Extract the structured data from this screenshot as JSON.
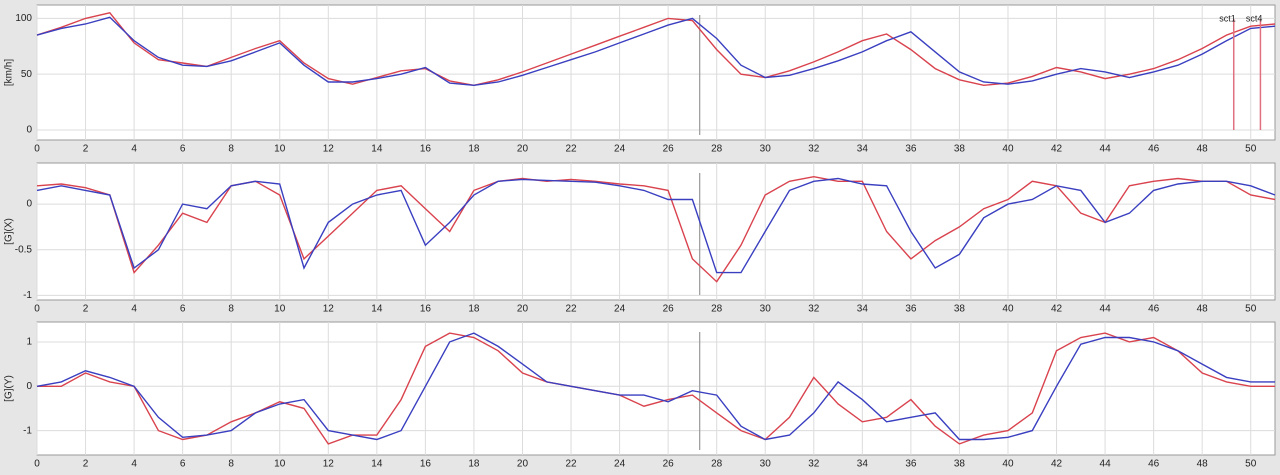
{
  "chart_data": [
    {
      "type": "line",
      "ylabel": "[km/h]",
      "x": [
        0,
        1,
        2,
        3,
        4,
        5,
        6,
        7,
        8,
        9,
        10,
        11,
        12,
        13,
        14,
        15,
        16,
        17,
        18,
        19,
        20,
        21,
        22,
        23,
        24,
        25,
        26,
        27,
        28,
        29,
        30,
        31,
        32,
        33,
        34,
        35,
        36,
        37,
        38,
        39,
        40,
        41,
        42,
        43,
        44,
        45,
        46,
        47,
        48,
        49,
        50,
        51
      ],
      "series": [
        {
          "color": "#d9434e",
          "values": [
            85,
            92,
            100,
            105,
            78,
            63,
            60,
            57,
            65,
            73,
            80,
            60,
            46,
            41,
            47,
            53,
            55,
            44,
            40,
            45,
            52,
            60,
            68,
            76,
            84,
            92,
            100,
            98,
            72,
            50,
            47,
            53,
            61,
            70,
            80,
            86,
            72,
            55,
            45,
            40,
            42,
            48,
            56,
            52,
            46,
            50,
            55,
            63,
            73,
            85,
            93,
            95
          ]
        },
        {
          "color": "#3a3fc0",
          "values": [
            85,
            91,
            95,
            101,
            80,
            65,
            58,
            57,
            62,
            70,
            78,
            58,
            43,
            43,
            46,
            50,
            56,
            42,
            40,
            43,
            49,
            56,
            63,
            70,
            78,
            86,
            94,
            100,
            82,
            58,
            47,
            49,
            55,
            62,
            70,
            80,
            88,
            70,
            52,
            43,
            41,
            44,
            50,
            55,
            52,
            47,
            52,
            58,
            68,
            80,
            91,
            93
          ]
        }
      ],
      "xlim": [
        0,
        51
      ],
      "xticks": [
        0,
        2,
        4,
        6,
        8,
        10,
        12,
        14,
        16,
        18,
        20,
        22,
        24,
        26,
        28,
        30,
        32,
        34,
        36,
        38,
        40,
        42,
        44,
        46,
        48,
        50
      ],
      "ylim": [
        -9,
        112
      ],
      "yticks": [
        0,
        50,
        100
      ],
      "grid": true,
      "cursor_x": 27.3,
      "markers": [
        {
          "label": "sct1",
          "x": 49.3
        },
        {
          "label": "sct4",
          "x": 50.4
        }
      ]
    },
    {
      "type": "line",
      "ylabel": "[G](X)",
      "x": [
        0,
        1,
        2,
        3,
        4,
        5,
        6,
        7,
        8,
        9,
        10,
        11,
        12,
        13,
        14,
        15,
        16,
        17,
        18,
        19,
        20,
        21,
        22,
        23,
        24,
        25,
        26,
        27,
        28,
        29,
        30,
        31,
        32,
        33,
        34,
        35,
        36,
        37,
        38,
        39,
        40,
        41,
        42,
        43,
        44,
        45,
        46,
        47,
        48,
        49,
        50,
        51
      ],
      "series": [
        {
          "color": "#d9434e",
          "values": [
            0.2,
            0.22,
            0.18,
            0.1,
            -0.75,
            -0.45,
            -0.1,
            -0.2,
            0.2,
            0.25,
            0.1,
            -0.6,
            -0.35,
            -0.1,
            0.15,
            0.2,
            -0.05,
            -0.3,
            0.15,
            0.25,
            0.28,
            0.25,
            0.27,
            0.25,
            0.22,
            0.2,
            0.15,
            -0.6,
            -0.85,
            -0.45,
            0.1,
            0.25,
            0.3,
            0.25,
            0.25,
            -0.3,
            -0.6,
            -0.4,
            -0.25,
            -0.05,
            0.05,
            0.25,
            0.2,
            -0.1,
            -0.2,
            0.2,
            0.25,
            0.28,
            0.25,
            0.25,
            0.1,
            0.05
          ]
        },
        {
          "color": "#3a3fc0",
          "values": [
            0.15,
            0.2,
            0.15,
            0.1,
            -0.7,
            -0.5,
            0.0,
            -0.05,
            0.2,
            0.25,
            0.22,
            -0.7,
            -0.2,
            0.0,
            0.1,
            0.15,
            -0.45,
            -0.2,
            0.1,
            0.25,
            0.27,
            0.26,
            0.25,
            0.24,
            0.2,
            0.15,
            0.05,
            0.05,
            -0.75,
            -0.75,
            -0.3,
            0.15,
            0.25,
            0.28,
            0.22,
            0.2,
            -0.3,
            -0.7,
            -0.55,
            -0.15,
            0.0,
            0.05,
            0.2,
            0.15,
            -0.2,
            -0.1,
            0.15,
            0.22,
            0.25,
            0.25,
            0.2,
            0.1
          ]
        }
      ],
      "xlim": [
        0,
        51
      ],
      "xticks": [
        0,
        2,
        4,
        6,
        8,
        10,
        12,
        14,
        16,
        18,
        20,
        22,
        24,
        26,
        28,
        30,
        32,
        34,
        36,
        38,
        40,
        42,
        44,
        46,
        48,
        50
      ],
      "ylim": [
        -1.05,
        0.45
      ],
      "yticks": [
        0,
        -0.5,
        -1
      ],
      "grid": true,
      "cursor_x": 27.3
    },
    {
      "type": "line",
      "ylabel": "[G](Y)",
      "x": [
        0,
        1,
        2,
        3,
        4,
        5,
        6,
        7,
        8,
        9,
        10,
        11,
        12,
        13,
        14,
        15,
        16,
        17,
        18,
        19,
        20,
        21,
        22,
        23,
        24,
        25,
        26,
        27,
        28,
        29,
        30,
        31,
        32,
        33,
        34,
        35,
        36,
        37,
        38,
        39,
        40,
        41,
        42,
        43,
        44,
        45,
        46,
        47,
        48,
        49,
        50,
        51
      ],
      "series": [
        {
          "color": "#d9434e",
          "values": [
            0,
            0,
            0.3,
            0.1,
            0,
            -1.0,
            -1.2,
            -1.1,
            -0.8,
            -0.6,
            -0.35,
            -0.5,
            -1.3,
            -1.1,
            -1.1,
            -0.3,
            0.9,
            1.2,
            1.1,
            0.8,
            0.3,
            0.1,
            0,
            -0.1,
            -0.2,
            -0.45,
            -0.3,
            -0.2,
            -0.6,
            -1.0,
            -1.2,
            -0.7,
            0.2,
            -0.4,
            -0.8,
            -0.7,
            -0.3,
            -0.9,
            -1.3,
            -1.1,
            -1.0,
            -0.6,
            0.8,
            1.1,
            1.2,
            1.0,
            1.1,
            0.8,
            0.3,
            0.1,
            0.0,
            0.0
          ]
        },
        {
          "color": "#3a3fc0",
          "values": [
            0,
            0.1,
            0.35,
            0.2,
            0,
            -0.7,
            -1.15,
            -1.1,
            -1.0,
            -0.6,
            -0.4,
            -0.3,
            -1.0,
            -1.1,
            -1.2,
            -1.0,
            0.0,
            1.0,
            1.2,
            0.9,
            0.5,
            0.1,
            0.0,
            -0.1,
            -0.2,
            -0.2,
            -0.35,
            -0.1,
            -0.2,
            -0.9,
            -1.2,
            -1.1,
            -0.6,
            0.1,
            -0.3,
            -0.8,
            -0.7,
            -0.6,
            -1.2,
            -1.2,
            -1.15,
            -1.0,
            0.0,
            0.95,
            1.1,
            1.1,
            1.0,
            0.8,
            0.5,
            0.2,
            0.1,
            0.1
          ]
        }
      ],
      "xlim": [
        0,
        51
      ],
      "xticks": [
        0,
        2,
        4,
        6,
        8,
        10,
        12,
        14,
        16,
        18,
        20,
        22,
        24,
        26,
        28,
        30,
        32,
        34,
        36,
        38,
        40,
        42,
        44,
        46,
        48,
        50
      ],
      "ylim": [
        -1.55,
        1.45
      ],
      "yticks": [
        1,
        0,
        -1
      ],
      "grid": true,
      "cursor_x": 27.3
    }
  ]
}
